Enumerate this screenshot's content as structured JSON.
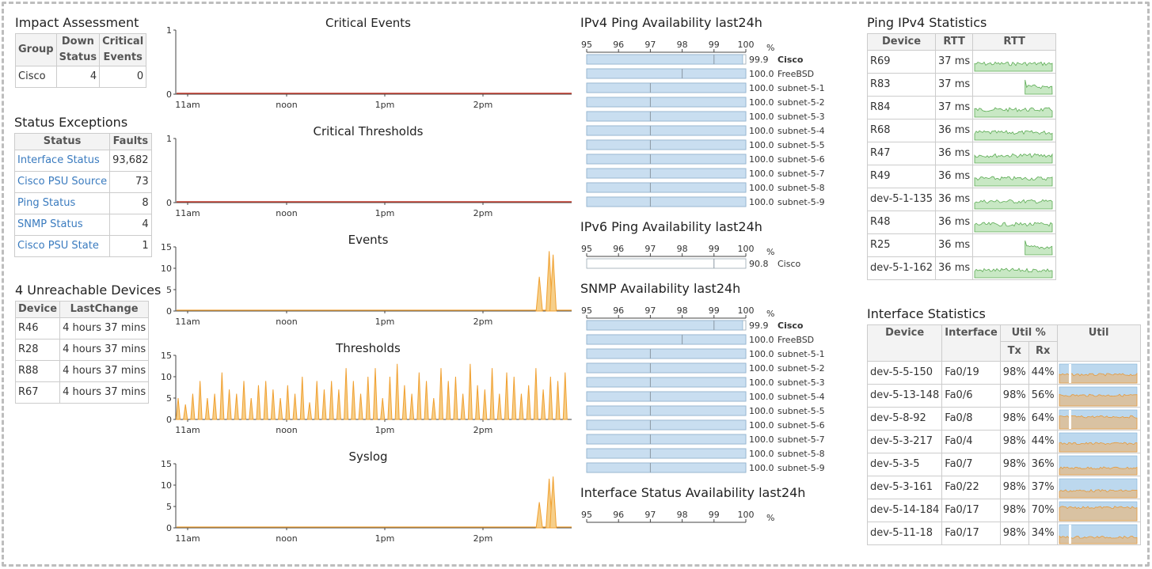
{
  "impact": {
    "title": "Impact Assessment",
    "headers": [
      "Group",
      "Down Status",
      "Critical Events"
    ],
    "rows": [
      [
        "Cisco",
        "4",
        "0"
      ]
    ]
  },
  "exceptions": {
    "title": "Status Exceptions",
    "headers": [
      "Status",
      "Faults"
    ],
    "rows": [
      [
        "Interface Status",
        "93,682"
      ],
      [
        "Cisco PSU Source",
        "73"
      ],
      [
        "Ping Status",
        "8"
      ],
      [
        "SNMP Status",
        "4"
      ],
      [
        "Cisco PSU State",
        "1"
      ]
    ]
  },
  "unreachable": {
    "title": "4 Unreachable Devices",
    "headers": [
      "Device",
      "LastChange"
    ],
    "rows": [
      [
        "R46",
        "4 hours 37 mins"
      ],
      [
        "R28",
        "4 hours 37 mins"
      ],
      [
        "R88",
        "4 hours 37 mins"
      ],
      [
        "R67",
        "4 hours 37 mins"
      ]
    ]
  },
  "time_graphs": {
    "x_ticks": [
      "11am",
      "noon",
      "1pm",
      "2pm"
    ],
    "graphs": [
      {
        "title": "Critical Events",
        "y_ticks": [
          "1",
          "0"
        ],
        "ymax": 1,
        "color": "#c0392b",
        "kind": "flat"
      },
      {
        "title": "Critical Thresholds",
        "y_ticks": [
          "1",
          "0"
        ],
        "ymax": 1,
        "color": "#c0392b",
        "kind": "flat"
      },
      {
        "title": "Events",
        "y_ticks": [
          "15",
          "10",
          "5",
          "0"
        ],
        "ymax": 15,
        "color": "#f0a030",
        "kind": "spikes",
        "spikes": [
          [
            0.92,
            8
          ],
          [
            0.945,
            14
          ],
          [
            0.955,
            13.2
          ]
        ]
      },
      {
        "title": "Thresholds",
        "y_ticks": [
          "15",
          "10",
          "5",
          "0"
        ],
        "ymax": 15,
        "color": "#f0a030",
        "kind": "periodic",
        "values": [
          5,
          3.5,
          6,
          9,
          5,
          6,
          11,
          7,
          6,
          9,
          5,
          8,
          9,
          7,
          5,
          8,
          6,
          10,
          4,
          9,
          7,
          9,
          7,
          12,
          9,
          6,
          10,
          12,
          5,
          10,
          13,
          8,
          6,
          11,
          9,
          5,
          12,
          9,
          10,
          6,
          13,
          8,
          7,
          12,
          6,
          11,
          10,
          6,
          8,
          12,
          7,
          10,
          9,
          11
        ]
      },
      {
        "title": "Syslog",
        "y_ticks": [
          "15",
          "10",
          "5",
          "0"
        ],
        "ymax": 15,
        "color": "#f0a030",
        "kind": "spikes",
        "spikes": [
          [
            0.92,
            6
          ],
          [
            0.945,
            11.5
          ],
          [
            0.955,
            12
          ]
        ]
      }
    ]
  },
  "availability": {
    "scale": [
      "95",
      "96",
      "97",
      "98",
      "99",
      "100"
    ],
    "scale_min": 95,
    "scale_max": 100,
    "unit": "%",
    "sections": [
      {
        "title": "IPv4 Ping Availability last24h",
        "rows": [
          {
            "value": "99.9",
            "name": "Cisco",
            "bold": true,
            "marker": 99
          },
          {
            "value": "100.0",
            "name": "FreeBSD",
            "marker": 98
          },
          {
            "value": "100.0",
            "name": "subnet-5-1",
            "marker": 97
          },
          {
            "value": "100.0",
            "name": "subnet-5-2",
            "marker": 97
          },
          {
            "value": "100.0",
            "name": "subnet-5-3",
            "marker": 97
          },
          {
            "value": "100.0",
            "name": "subnet-5-4",
            "marker": 97
          },
          {
            "value": "100.0",
            "name": "subnet-5-5",
            "marker": 97
          },
          {
            "value": "100.0",
            "name": "subnet-5-6",
            "marker": 97
          },
          {
            "value": "100.0",
            "name": "subnet-5-7",
            "marker": 97
          },
          {
            "value": "100.0",
            "name": "subnet-5-8",
            "marker": 97
          },
          {
            "value": "100.0",
            "name": "subnet-5-9",
            "marker": 97
          }
        ]
      },
      {
        "title": "IPv6 Ping Availability last24h",
        "rows": [
          {
            "value": "90.8",
            "name": "Cisco",
            "empty": true,
            "marker": 99
          }
        ]
      },
      {
        "title": "SNMP Availability last24h",
        "rows": [
          {
            "value": "99.9",
            "name": "Cisco",
            "bold": true,
            "marker": 99
          },
          {
            "value": "100.0",
            "name": "FreeBSD",
            "marker": 98
          },
          {
            "value": "100.0",
            "name": "subnet-5-1",
            "marker": 97
          },
          {
            "value": "100.0",
            "name": "subnet-5-2",
            "marker": 97
          },
          {
            "value": "100.0",
            "name": "subnet-5-3",
            "marker": 97
          },
          {
            "value": "100.0",
            "name": "subnet-5-4",
            "marker": 97
          },
          {
            "value": "100.0",
            "name": "subnet-5-5",
            "marker": 97
          },
          {
            "value": "100.0",
            "name": "subnet-5-6",
            "marker": 97
          },
          {
            "value": "100.0",
            "name": "subnet-5-7",
            "marker": 97
          },
          {
            "value": "100.0",
            "name": "subnet-5-8",
            "marker": 97
          },
          {
            "value": "100.0",
            "name": "subnet-5-9",
            "marker": 97
          }
        ]
      },
      {
        "title": "Interface Status Availability last24h",
        "rows": []
      }
    ]
  },
  "ping_stats": {
    "title": "Ping IPv4 Statistics",
    "headers": [
      "Device",
      "RTT",
      "RTT"
    ],
    "rows": [
      {
        "device": "R69",
        "rtt": "37 ms",
        "spark_start": 0
      },
      {
        "device": "R83",
        "rtt": "37 ms",
        "spark_start": 0.65
      },
      {
        "device": "R84",
        "rtt": "37 ms",
        "spark_start": 0
      },
      {
        "device": "R68",
        "rtt": "36 ms",
        "spark_start": 0
      },
      {
        "device": "R47",
        "rtt": "36 ms",
        "spark_start": 0
      },
      {
        "device": "R49",
        "rtt": "36 ms",
        "spark_start": 0
      },
      {
        "device": "dev-5-1-135",
        "rtt": "36 ms",
        "spark_start": 0
      },
      {
        "device": "R48",
        "rtt": "36 ms",
        "spark_start": 0
      },
      {
        "device": "R25",
        "rtt": "36 ms",
        "spark_start": 0.65
      },
      {
        "device": "dev-5-1-162",
        "rtt": "36 ms",
        "spark_start": 0
      }
    ]
  },
  "iface_stats": {
    "title": "Interface Statistics",
    "headers": [
      "Device",
      "Interface",
      "Util %",
      "Util"
    ],
    "sub_headers": [
      "Tx",
      "Rx"
    ],
    "rows": [
      {
        "device": "dev-5-5-150",
        "iface": "Fa0/19",
        "tx": "98%",
        "rx": "44%",
        "level": 0.44
      },
      {
        "device": "dev-5-13-148",
        "iface": "Fa0/6",
        "tx": "98%",
        "rx": "56%",
        "level": 0.56
      },
      {
        "device": "dev-5-8-92",
        "iface": "Fa0/8",
        "tx": "98%",
        "rx": "64%",
        "level": 0.64
      },
      {
        "device": "dev-5-3-217",
        "iface": "Fa0/4",
        "tx": "98%",
        "rx": "44%",
        "level": 0.44
      },
      {
        "device": "dev-5-3-5",
        "iface": "Fa0/7",
        "tx": "98%",
        "rx": "36%",
        "level": 0.36
      },
      {
        "device": "dev-5-3-161",
        "iface": "Fa0/22",
        "tx": "98%",
        "rx": "37%",
        "level": 0.37
      },
      {
        "device": "dev-5-14-184",
        "iface": "Fa0/17",
        "tx": "98%",
        "rx": "70%",
        "level": 0.7
      },
      {
        "device": "dev-5-11-18",
        "iface": "Fa0/17",
        "tx": "98%",
        "rx": "34%",
        "level": 0.34
      }
    ]
  }
}
